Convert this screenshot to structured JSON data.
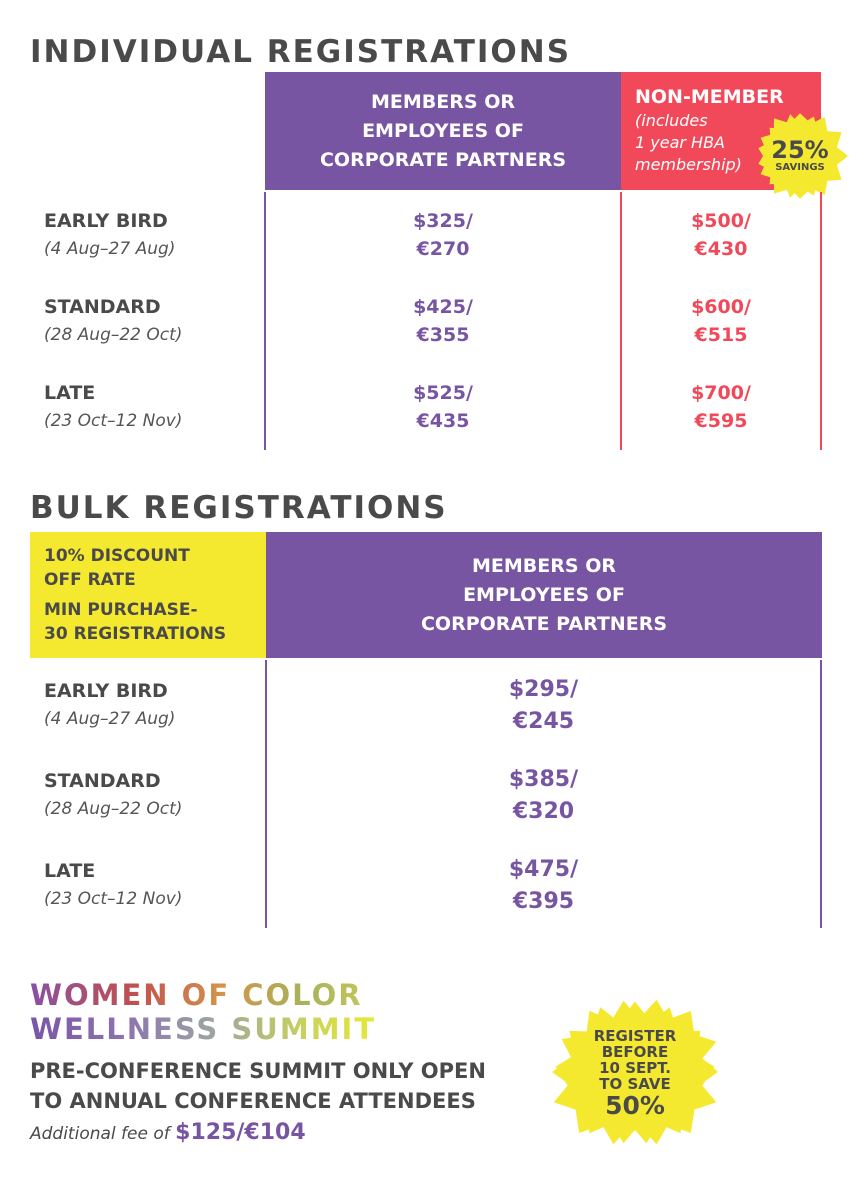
{
  "individual": {
    "title": "INDIVIDUAL REGISTRATIONS",
    "member_header": [
      "MEMBERS OR",
      "EMPLOYEES OF",
      "CORPORATE PARTNERS"
    ],
    "nonmember_title": "NON-MEMBER",
    "nonmember_note": [
      "(includes",
      "1 year HBA",
      "membership)"
    ],
    "badge": {
      "big": "25%",
      "small": "SAVINGS"
    },
    "rows": [
      {
        "tier": "EARLY BIRD",
        "dates": "(4 Aug–27 Aug)",
        "member_usd": "$325/",
        "member_eur": "€270",
        "nonmember_usd": "$500/",
        "nonmember_eur": "€430"
      },
      {
        "tier": "STANDARD",
        "dates": "(28 Aug–22 Oct)",
        "member_usd": "$425/",
        "member_eur": "€355",
        "nonmember_usd": "$600/",
        "nonmember_eur": "€515"
      },
      {
        "tier": "LATE",
        "dates": "(23 Oct–12 Nov)",
        "member_usd": "$525/",
        "member_eur": "€435",
        "nonmember_usd": "$700/",
        "nonmember_eur": "€595"
      }
    ]
  },
  "bulk": {
    "title": "BULK REGISTRATIONS",
    "discount_lines": [
      "10% DISCOUNT",
      "OFF RATE"
    ],
    "min_lines": [
      "MIN PURCHASE-",
      "30 REGISTRATIONS"
    ],
    "member_header": [
      "MEMBERS OR",
      "EMPLOYEES OF",
      "CORPORATE PARTNERS"
    ],
    "rows": [
      {
        "tier": "EARLY BIRD",
        "dates": "(4 Aug–27 Aug)",
        "usd": "$295/",
        "eur": "€245"
      },
      {
        "tier": "STANDARD",
        "dates": "(28 Aug–22 Oct)",
        "usd": "$385/",
        "eur": "€320"
      },
      {
        "tier": "LATE",
        "dates": "(23 Oct–12 Nov)",
        "usd": "$475/",
        "eur": "€395"
      }
    ]
  },
  "summit": {
    "title_lines": [
      "WOMEN OF COLOR",
      "WELLNESS SUMMIT"
    ],
    "notice_lines": [
      "PRE-CONFERENCE SUMMIT ONLY OPEN",
      "TO ANNUAL CONFERENCE ATTENDEES"
    ],
    "fee_label": "Additional fee of ",
    "fee_amount": "$125/€104",
    "badge_lines": [
      "REGISTER",
      "BEFORE",
      "10 SEPT.",
      "TO SAVE"
    ],
    "badge_big": "50%"
  },
  "colors": {
    "purple": "#7755a2",
    "coral": "#f2495a",
    "yellow": "#f5e930",
    "text": "#4a4a4a"
  }
}
